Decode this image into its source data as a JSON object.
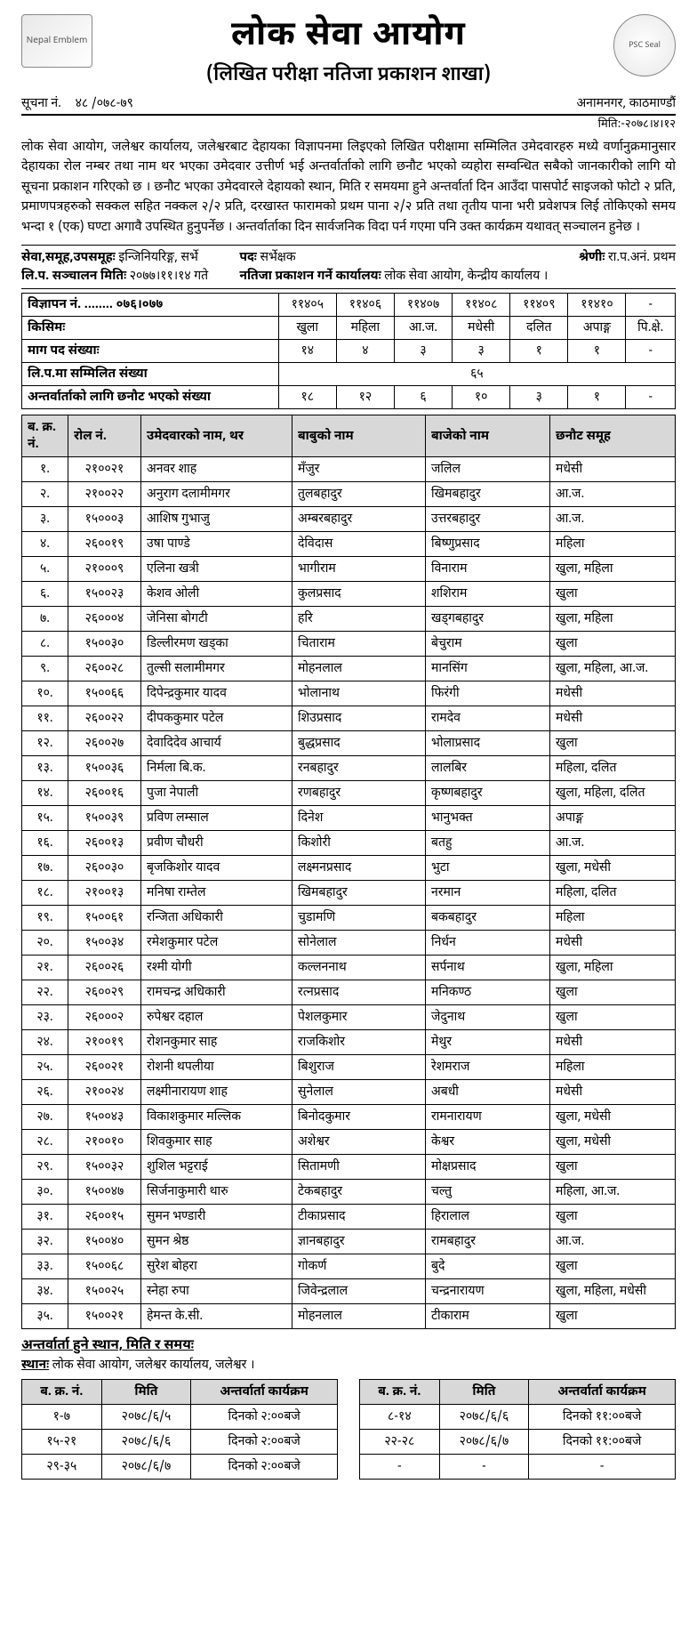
{
  "header": {
    "orgTitle": "लोक सेवा आयोग",
    "branch": "(लिखित परीक्षा नतिजा प्रकाशन शाखा)",
    "noticeLabel": "सूचना नं.",
    "noticeNo": "४८ /०७८-७९",
    "addressLine": "अनामनगर, काठमाण्डौं",
    "dateLine": "मिति:-२०७८।४।१२",
    "logoLeftAlt": "Nepal Emblem",
    "logoRightAlt": "PSC Seal"
  },
  "notice": "लोक सेवा आयोग, जलेश्वर कार्यालय, जलेश्वरबाट देहायका विज्ञापनमा लिइएको लिखित परीक्षामा सम्मिलित उमेदवारहरु मध्ये वर्णानुक्रमानुसार देहायका रोल नम्बर तथा नाम थर भएका उमेदवार उत्तीर्ण भई अन्तर्वार्ताको लागि छनौट भएको व्यहोरा सम्वन्धित सबैको जानकारीको लागि यो सूचना प्रकाशन गरिएको छ । छनौट भएका उमेदवारले देहायको स्थान, मिति र समयमा हुने अन्तर्वार्ता दिन आउँदा पासपोर्ट साइजको फोटो २ प्रति, प्रमाणपत्रहरुको सक्कल सहित नक्कल २/२ प्रति, दरखास्त फारामको प्रथम पाना २/२ प्रति तथा तृतीय पाना भरी प्रवेशपत्र लिई तोकिएको समय भन्दा १ (एक) घण्टा अगावै उपस्थित हुनुपर्नेछ । अन्तर्वार्ताका दिन सार्वजनिक विदा पर्न गएमा पनि उक्त कार्यक्रम यथावत् सञ्चालन  हुनेछ ।",
  "meta": {
    "serviceLabel": "सेवा,समूह,उपसमूहः",
    "service": "इन्जिनियरिङ्ग, सर्भे",
    "postLabel": "पदः",
    "post": "सर्भेक्षक",
    "gradeLabel": "श्रेणीः",
    "grade": "रा.प.अनं. प्रथम",
    "examDateLabel": "लि.प. सञ्चालन मितिः",
    "examDate": "२०७७।११।१४ गते",
    "publishOfficeLabel": "नतिजा प्रकाशन गर्ने कार्यालयः",
    "publishOffice": "लोक सेवा आयोग, केन्द्रीय कार्यालय ।"
  },
  "summary": {
    "rows": [
      "विज्ञापन नं. ........ ०७६।०७७",
      "किसिमः",
      "माग पद संख्याः",
      "लि.प.मा सम्मिलित संख्या",
      "अन्तर्वार्ताको लागि छनौट भएको संख्या"
    ],
    "adNos": [
      "११४०५",
      "११४०६",
      "११४०७",
      "११४०८",
      "११४०९",
      "११४१०",
      "-"
    ],
    "types": [
      "खुला",
      "महिला",
      "आ.ज.",
      "मधेसी",
      "दलित",
      "अपाङ्ग",
      "पि.क्षे."
    ],
    "demand": [
      "१४",
      "४",
      "३",
      "३",
      "१",
      "१",
      "-"
    ],
    "appeared": "६५",
    "selected": [
      "१८",
      "१२",
      "६",
      "१०",
      "३",
      "१",
      "-"
    ]
  },
  "table": {
    "headers": [
      "ब. क्र. नं.",
      "रोल नं.",
      "उमेदवारको नाम, थर",
      "बाबुको नाम",
      "बाजेको नाम",
      "छनौट समूह"
    ],
    "rows": [
      {
        "sn": "१.",
        "roll": "२१००२१",
        "name": "अनवर शाह",
        "father": "मँजुर",
        "gf": "जलिल",
        "grp": "मधेसी"
      },
      {
        "sn": "२.",
        "roll": "२१००२२",
        "name": "अनुराग दलामीमगर",
        "father": "तुलबहादुर",
        "gf": "खिमबहादुर",
        "grp": "आ.ज."
      },
      {
        "sn": "३.",
        "roll": "१५०००३",
        "name": "आशिष गुभाजु",
        "father": "अम्बरबहादुर",
        "gf": "उत्तरबहादुर",
        "grp": "आ.ज."
      },
      {
        "sn": "४.",
        "roll": "२६००१९",
        "name": "उषा पाण्डे",
        "father": "देविदास",
        "gf": "बिष्णुप्रसाद",
        "grp": "महिला"
      },
      {
        "sn": "५.",
        "roll": "२१०००९",
        "name": "एलिना खत्री",
        "father": "भागीराम",
        "gf": "विनाराम",
        "grp": "खुला, महिला"
      },
      {
        "sn": "६.",
        "roll": "१५००२३",
        "name": "केशव ओली",
        "father": "कुलप्रसाद",
        "gf": "शशिराम",
        "grp": "खुला"
      },
      {
        "sn": "७.",
        "roll": "२६०००४",
        "name": "जेनिसा बोगटी",
        "father": "हरि",
        "gf": "खड्गबहादुर",
        "grp": "खुला, महिला"
      },
      {
        "sn": "८.",
        "roll": "१५००३०",
        "name": "डिल्लीरमण खड्का",
        "father": "चिताराम",
        "gf": "बेचुराम",
        "grp": "खुला"
      },
      {
        "sn": "९.",
        "roll": "२६००२८",
        "name": "तुल्सी सलामीमगर",
        "father": "मोहनलाल",
        "gf": "मानसिंग",
        "grp": "खुला, महिला, आ.ज."
      },
      {
        "sn": "१०.",
        "roll": "१५००६६",
        "name": "दिपेन्द्रकुमार यादव",
        "father": "भोलानाथ",
        "gf": "फिरंगी",
        "grp": "मधेसी"
      },
      {
        "sn": "११.",
        "roll": "२६००२२",
        "name": "दीपककुमार पटेल",
        "father": "शिउप्रसाद",
        "gf": "रामदेव",
        "grp": "मधेसी"
      },
      {
        "sn": "१२.",
        "roll": "२६००२७",
        "name": "देवादिदेव आचार्य",
        "father": "बुद्धप्रसाद",
        "gf": "भोलाप्रसाद",
        "grp": "खुला"
      },
      {
        "sn": "१३.",
        "roll": "१५००३६",
        "name": "निर्मला बि.क.",
        "father": "रनबहादुर",
        "gf": "लालबिर",
        "grp": "महिला, दलित"
      },
      {
        "sn": "१४.",
        "roll": "२६००१६",
        "name": "पुजा नेपाली",
        "father": "रणबहादुर",
        "gf": "कृष्णबहादुर",
        "grp": "खुला, महिला, दलित"
      },
      {
        "sn": "१५.",
        "roll": "१५००३९",
        "name": "प्रविण लम्साल",
        "father": "दिनेश",
        "gf": "भानुभक्त",
        "grp": "अपाङ्ग"
      },
      {
        "sn": "१६.",
        "roll": "२६००१३",
        "name": "प्रवीण चौधरी",
        "father": "किशोरी",
        "gf": "बतहु",
        "grp": "आ.ज."
      },
      {
        "sn": "१७.",
        "roll": "२६००३०",
        "name": "बृजकिशोर यादव",
        "father": "लक्ष्मनप्रसाद",
        "gf": "भुटा",
        "grp": "खुला, मधेसी"
      },
      {
        "sn": "१८.",
        "roll": "२१००१३",
        "name": "मनिषा राम्तेल",
        "father": "खिमबहादुर",
        "gf": "नरमान",
        "grp": "महिला, दलित"
      },
      {
        "sn": "१९.",
        "roll": "१५००६१",
        "name": "रन्जिता अधिकारी",
        "father": "चुडामणि",
        "gf": "बकबहादुर",
        "grp": "महिला"
      },
      {
        "sn": "२०.",
        "roll": "१५००३४",
        "name": "रमेशकुमार पटेल",
        "father": "सोनेलाल",
        "gf": "निर्धन",
        "grp": "मधेसी"
      },
      {
        "sn": "२१.",
        "roll": "२६००२६",
        "name": "रश्मी योगी",
        "father": "कल्लननाथ",
        "gf": "सर्पनाथ",
        "grp": "खुला, महिला"
      },
      {
        "sn": "२२.",
        "roll": "२६००२९",
        "name": "रामचन्द्र अधिकारी",
        "father": "रत्नप्रसाद",
        "gf": "मनिकण्ठ",
        "grp": "खुला"
      },
      {
        "sn": "२३.",
        "roll": "२६०००२",
        "name": "रुपेश्वर दहाल",
        "father": "पेशलकुमार",
        "gf": "जेदुनाथ",
        "grp": "खुला"
      },
      {
        "sn": "२४.",
        "roll": "२१००१९",
        "name": "रोशनकुमार साह",
        "father": "राजकिशोर",
        "gf": "मेथुर",
        "grp": "मधेसी"
      },
      {
        "sn": "२५.",
        "roll": "२६००२१",
        "name": "रोशनी थपलीया",
        "father": "बिशुराज",
        "gf": "रेशमराज",
        "grp": "महिला"
      },
      {
        "sn": "२६.",
        "roll": "२१००२४",
        "name": "लक्ष्मीनारायण शाह",
        "father": "सुनेलाल",
        "gf": "अबधी",
        "grp": "मधेसी"
      },
      {
        "sn": "२७.",
        "roll": "१५००४३",
        "name": "विकाशकुमार मल्लिक",
        "father": "बिनोदकुमार",
        "gf": "रामनारायण",
        "grp": "खुला, मधेसी"
      },
      {
        "sn": "२८.",
        "roll": "२१००१०",
        "name": "शिवकुमार साह",
        "father": "अशेश्वर",
        "gf": "केश्वर",
        "grp": "खुला, मधेसी"
      },
      {
        "sn": "२९.",
        "roll": "१५००३२",
        "name": "शुशिल भट्टराई",
        "father": "सितामणी",
        "gf": "मोक्षप्रसाद",
        "grp": "खुला"
      },
      {
        "sn": "३०.",
        "roll": "१५००४७",
        "name": "सिर्जनाकुमारी थारु",
        "father": "टेकबहादुर",
        "gf": "चल्तु",
        "grp": "महिला, आ.ज."
      },
      {
        "sn": "३१.",
        "roll": "२६००१५",
        "name": "सुमन भण्डारी",
        "father": "टीकाप्रसाद",
        "gf": "हिरालाल",
        "grp": "खुला"
      },
      {
        "sn": "३२.",
        "roll": "१५००४०",
        "name": "सुमन श्रेष्ठ",
        "father": "ज्ञानबहादुर",
        "gf": "रामबहादुर",
        "grp": "आ.ज."
      },
      {
        "sn": "३३.",
        "roll": "१५००६८",
        "name": "सुरेश बोहरा",
        "father": "गोकर्ण",
        "gf": "बुदे",
        "grp": "खुला"
      },
      {
        "sn": "३४.",
        "roll": "१५००२५",
        "name": "स्नेहा रुपा",
        "father": "जिवेन्द्रलाल",
        "gf": "चन्द्रनारायण",
        "grp": "खुला, महिला, मधेसी"
      },
      {
        "sn": "३५.",
        "roll": "१५००२१",
        "name": "हेमन्त के.सी.",
        "father": "मोहनलाल",
        "gf": "टीकाराम",
        "grp": "खुला"
      }
    ]
  },
  "schedule": {
    "title": "अन्तर्वार्ता हुने स्थान, मिति र समयः",
    "venueLabel": "स्थानः",
    "venue": "लोक सेवा आयोग, जलेश्वर कार्यालय, जलेश्वर ।",
    "headers": [
      "ब. क्र. नं.",
      "मिति",
      "अन्तर्वार्ता कार्यक्रम"
    ],
    "left": [
      {
        "sn": "१-७",
        "date": "२०७८/६/५",
        "time": "दिनको २:००बजे"
      },
      {
        "sn": "१५-२१",
        "date": "२०७८/६/६",
        "time": "दिनको २:००बजे"
      },
      {
        "sn": "२९-३५",
        "date": "२०७८/६/७",
        "time": "दिनको २:००बजे"
      }
    ],
    "right": [
      {
        "sn": "८-१४",
        "date": "२०७८/६/६",
        "time": "दिनको ११:००बजे"
      },
      {
        "sn": "२२-२८",
        "date": "२०७८/६/७",
        "time": "दिनको ११:००बजे"
      },
      {
        "sn": "-",
        "date": "-",
        "time": "-"
      }
    ]
  }
}
